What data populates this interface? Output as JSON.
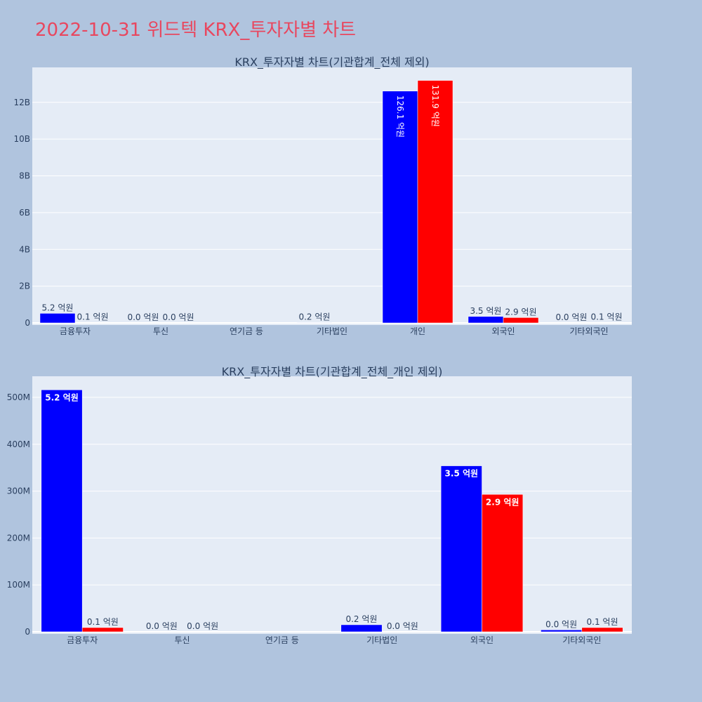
{
  "page_title": "2022-10-31 위드텍 KRX_투자자별 차트",
  "colors": {
    "background": "#b0c4de",
    "plot_bg": "#e5ecf6",
    "title": "#e8475f",
    "series_a": "#0000ff",
    "series_b": "#ff0000",
    "grid": "#ffffff",
    "text": "#2a3f5f"
  },
  "chart_data": [
    {
      "type": "bar",
      "title": "KRX_투자자별 차트(기관합계_전체 제외)",
      "categories": [
        "금융투자",
        "투신",
        "연기금 등",
        "기타법인",
        "개인",
        "외국인",
        "기타외국인"
      ],
      "series": [
        {
          "color": "#0000ff",
          "values": [
            520000000,
            0,
            null,
            20000000,
            12610000000,
            350000000,
            0
          ],
          "labels": [
            "5.2 억원",
            "0.0 억원",
            "",
            "0.2 억원",
            "126.1 억원",
            "3.5 억원",
            "0.0 억원"
          ]
        },
        {
          "color": "#ff0000",
          "values": [
            10000000,
            0,
            null,
            0,
            13190000000,
            290000000,
            10000000
          ],
          "labels": [
            "0.1 억원",
            "0.0 억원",
            "",
            "",
            "131.9 억원",
            "2.9 억원",
            "0.1 억원"
          ]
        }
      ],
      "yticks": [
        "0",
        "2B",
        "4B",
        "6B",
        "8B",
        "10B",
        "12B"
      ],
      "ytick_values": [
        0,
        2000000000,
        4000000000,
        6000000000,
        8000000000,
        10000000000,
        12000000000
      ],
      "ylim": [
        0,
        13900000000
      ],
      "grid": true
    },
    {
      "type": "bar",
      "title": "KRX_투자자별 차트(기관합계_전체_개인 제외)",
      "categories": [
        "금융투자",
        "투신",
        "연기금 등",
        "기타법인",
        "외국인",
        "기타외국인"
      ],
      "series": [
        {
          "color": "#0000ff",
          "values": [
            516000000,
            0,
            null,
            15000000,
            354000000,
            4000000
          ],
          "labels": [
            "5.2 억원",
            "0.0 억원",
            "",
            "0.2 억원",
            "3.5 억원",
            "0.0 억원"
          ]
        },
        {
          "color": "#ff0000",
          "values": [
            9000000,
            0,
            null,
            0,
            293000000,
            9000000
          ],
          "labels": [
            "0.1 억원",
            "0.0 억원",
            "",
            "0.0 억원",
            "2.9 억원",
            "0.1 억원"
          ]
        }
      ],
      "yticks": [
        "0",
        "100M",
        "200M",
        "300M",
        "400M",
        "500M"
      ],
      "ytick_values": [
        0,
        100000000,
        200000000,
        300000000,
        400000000,
        500000000
      ],
      "ylim": [
        0,
        545000000
      ],
      "grid": true
    }
  ]
}
